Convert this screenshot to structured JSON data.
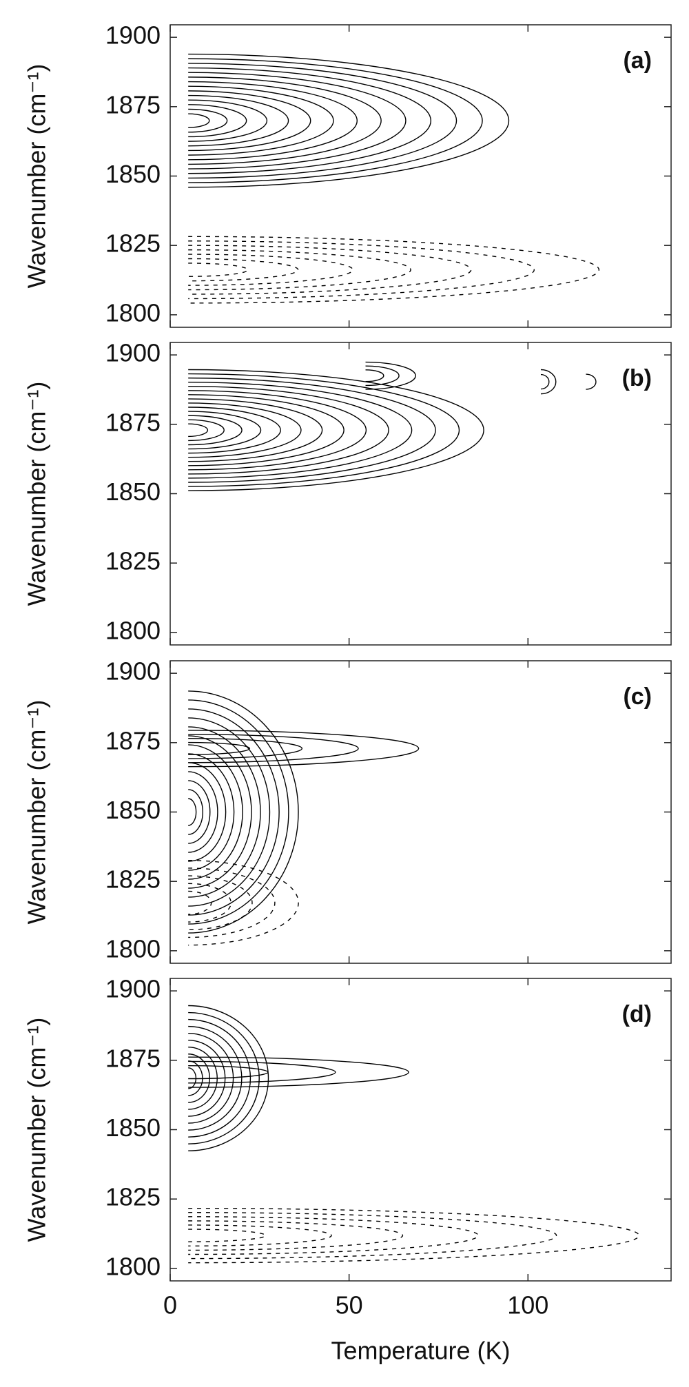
{
  "chart_data": [
    {
      "type": "contour",
      "panel_label": "(a)",
      "ylabel": "Wavenumber (cm⁻¹)",
      "xlim": [
        0,
        140
      ],
      "xticks": [
        0,
        50,
        100
      ],
      "ylim": [
        1795.5,
        1904.5
      ],
      "yticks": [
        1800,
        1825,
        1850,
        1875,
        1900
      ],
      "color": "#000000"
    },
    {
      "type": "contour",
      "panel_label": "(b)",
      "ylabel": "Wavenumber (cm⁻¹)",
      "xlim": [
        0,
        140
      ],
      "xticks": [
        0,
        50,
        100
      ],
      "ylim": [
        1795.5,
        1904.5
      ],
      "yticks": [
        1800,
        1825,
        1850,
        1875,
        1900
      ],
      "color": "#000000"
    },
    {
      "type": "contour",
      "panel_label": "(c)",
      "ylabel": "Wavenumber (cm⁻¹)",
      "xlim": [
        0,
        140
      ],
      "xticks": [
        0,
        50,
        100
      ],
      "ylim": [
        1795.5,
        1904.5
      ],
      "yticks": [
        1800,
        1825,
        1850,
        1875,
        1900
      ],
      "color": "#000000"
    },
    {
      "type": "contour",
      "panel_label": "(d)",
      "ylabel": "Wavenumber (cm⁻¹)",
      "xlabel": "Temperature (K)",
      "xlim": [
        0,
        140
      ],
      "xticks": [
        0,
        50,
        100
      ],
      "ylim": [
        1795.5,
        1904.5
      ],
      "yticks": [
        1800,
        1825,
        1850,
        1875,
        1900
      ],
      "color": "#000000"
    }
  ]
}
